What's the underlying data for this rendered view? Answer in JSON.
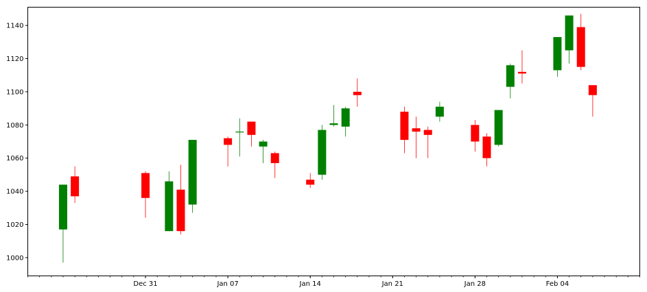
{
  "chart_data": {
    "type": "candlestick",
    "title": "",
    "xlabel": "",
    "ylabel": "",
    "ylim": [
      989,
      1151
    ],
    "xlim": [
      "2018-12-21",
      "2019-02-11"
    ],
    "yticks": [
      1000,
      1020,
      1040,
      1060,
      1080,
      1100,
      1120,
      1140
    ],
    "xticks": [
      {
        "date": "2018-12-31",
        "label": "Dec 31"
      },
      {
        "date": "2019-01-07",
        "label": "Jan 07"
      },
      {
        "date": "2019-01-14",
        "label": "Jan 14"
      },
      {
        "date": "2019-01-21",
        "label": "Jan 21"
      },
      {
        "date": "2019-01-28",
        "label": "Jan 28"
      },
      {
        "date": "2019-02-04",
        "label": "Feb 04"
      }
    ],
    "minor_ticks": "daily",
    "grid": false,
    "up_color": "#008000",
    "down_color": "#ff0000",
    "candles": [
      {
        "date": "2018-12-24",
        "open": 1017,
        "high": 1044,
        "low": 997,
        "close": 1044
      },
      {
        "date": "2018-12-25",
        "open": 1049,
        "high": 1055,
        "low": 1033,
        "close": 1037
      },
      {
        "date": "2018-12-31",
        "open": 1051,
        "high": 1052,
        "low": 1024,
        "close": 1036
      },
      {
        "date": "2019-01-02",
        "open": 1016,
        "high": 1052,
        "low": 1016,
        "close": 1046
      },
      {
        "date": "2019-01-03",
        "open": 1041,
        "high": 1056,
        "low": 1014,
        "close": 1016
      },
      {
        "date": "2019-01-04",
        "open": 1032,
        "high": 1071,
        "low": 1027,
        "close": 1071
      },
      {
        "date": "2019-01-07",
        "open": 1072,
        "high": 1073,
        "low": 1055,
        "close": 1068
      },
      {
        "date": "2019-01-08",
        "open": 1076,
        "high": 1084,
        "low": 1061,
        "close": 1076
      },
      {
        "date": "2019-01-09",
        "open": 1082,
        "high": 1082,
        "low": 1067,
        "close": 1074
      },
      {
        "date": "2019-01-10",
        "open": 1067,
        "high": 1071,
        "low": 1057,
        "close": 1070
      },
      {
        "date": "2019-01-11",
        "open": 1063,
        "high": 1064,
        "low": 1048,
        "close": 1057
      },
      {
        "date": "2019-01-14",
        "open": 1047,
        "high": 1051,
        "low": 1042,
        "close": 1044
      },
      {
        "date": "2019-01-15",
        "open": 1050,
        "high": 1080,
        "low": 1047,
        "close": 1077
      },
      {
        "date": "2019-01-16",
        "open": 1080,
        "high": 1092,
        "low": 1079,
        "close": 1081
      },
      {
        "date": "2019-01-17",
        "open": 1079,
        "high": 1091,
        "low": 1073,
        "close": 1090
      },
      {
        "date": "2019-01-18",
        "open": 1100,
        "high": 1108,
        "low": 1091,
        "close": 1098
      },
      {
        "date": "2019-01-22",
        "open": 1088,
        "high": 1091,
        "low": 1063,
        "close": 1071
      },
      {
        "date": "2019-01-23",
        "open": 1078,
        "high": 1085,
        "low": 1060,
        "close": 1076
      },
      {
        "date": "2019-01-24",
        "open": 1077,
        "high": 1079,
        "low": 1060,
        "close": 1074
      },
      {
        "date": "2019-01-25",
        "open": 1085,
        "high": 1094,
        "low": 1082,
        "close": 1091
      },
      {
        "date": "2019-01-28",
        "open": 1080,
        "high": 1083,
        "low": 1064,
        "close": 1070
      },
      {
        "date": "2019-01-29",
        "open": 1073,
        "high": 1075,
        "low": 1055,
        "close": 1060
      },
      {
        "date": "2019-01-30",
        "open": 1068,
        "high": 1089,
        "low": 1067,
        "close": 1089
      },
      {
        "date": "2019-01-31",
        "open": 1103,
        "high": 1117,
        "low": 1096,
        "close": 1116
      },
      {
        "date": "2019-02-01",
        "open": 1112,
        "high": 1125,
        "low": 1105,
        "close": 1111
      },
      {
        "date": "2019-02-04",
        "open": 1113,
        "high": 1133,
        "low": 1109,
        "close": 1133
      },
      {
        "date": "2019-02-05",
        "open": 1125,
        "high": 1146,
        "low": 1117,
        "close": 1146
      },
      {
        "date": "2019-02-06",
        "open": 1139,
        "high": 1147,
        "low": 1113,
        "close": 1115
      },
      {
        "date": "2019-02-07",
        "open": 1104,
        "high": 1104,
        "low": 1085,
        "close": 1098
      }
    ]
  }
}
